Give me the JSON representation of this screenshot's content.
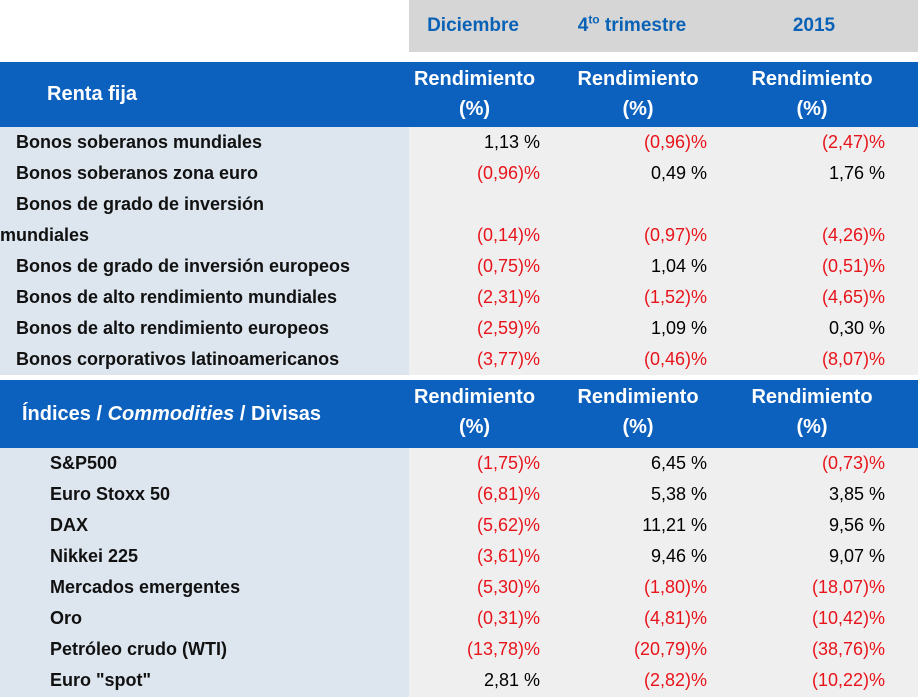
{
  "header": {
    "periods": [
      "Diciembre",
      "4",
      "to",
      " trimestre",
      "2015"
    ]
  },
  "colors": {
    "accent_blue": "#0c61bf",
    "negative_red": "#e8141b"
  },
  "renta_fija": {
    "title": "Renta fija",
    "col_header_line1": "Rendimiento",
    "col_header_line2": "(%)",
    "rows": [
      {
        "label": "Bonos soberanos mundiales",
        "v1": "1,13 %",
        "v2": "(0,96)%",
        "v3": "(2,47)%"
      },
      {
        "label": "Bonos soberanos zona euro",
        "v1": "(0,96)%",
        "v2": "0,49 %",
        "v3": "1,76 %"
      },
      {
        "label": "Bonos de grado de inversión",
        "label2": "mundiales",
        "v1": "(0,14)%",
        "v2": "(0,97)%",
        "v3": "(4,26)%"
      },
      {
        "label": "Bonos de grado de inversión europeos",
        "v1": "(0,75)%",
        "v2": "1,04 %",
        "v3": "(0,51)%"
      },
      {
        "label": "Bonos de alto rendimiento mundiales",
        "v1": "(2,31)%",
        "v2": "(1,52)%",
        "v3": "(4,65)%"
      },
      {
        "label": "Bonos de alto rendimiento europeos",
        "v1": "(2,59)%",
        "v2": "1,09 %",
        "v3": "0,30 %"
      },
      {
        "label": "Bonos corporativos latinoamericanos",
        "v1": "(3,77)%",
        "v2": "(0,46)%",
        "v3": "(8,07)%"
      }
    ]
  },
  "indices": {
    "title_part1": "Índices / ",
    "title_part2": "Commodities",
    "title_part3": " / Divisas",
    "col_header_line1": "Rendimiento",
    "col_header_line2": "(%)",
    "rows": [
      {
        "label": "S&P500",
        "v1": "(1,75)%",
        "v2": "6,45 %",
        "v3": "(0,73)%"
      },
      {
        "label": "Euro Stoxx 50",
        "v1": "(6,81)%",
        "v2": "5,38 %",
        "v3": "3,85 %"
      },
      {
        "label": "DAX",
        "v1": "(5,62)%",
        "v2": "11,21 %",
        "v3": "9,56 %"
      },
      {
        "label": "Nikkei 225",
        "v1": "(3,61)%",
        "v2": "9,46 %",
        "v3": "9,07 %"
      },
      {
        "label": "Mercados emergentes",
        "v1": "(5,30)%",
        "v2": "(1,80)%",
        "v3": "(18,07)%"
      },
      {
        "label": "Oro",
        "v1": "(0,31)%",
        "v2": "(4,81)%",
        "v3": "(10,42)%"
      },
      {
        "label": "Petróleo crudo (WTI)",
        "v1": "(13,78)%",
        "v2": "(20,79)%",
        "v3": "(38,76)%"
      },
      {
        "label": "Euro \"spot\"",
        "v1": "2,81 %",
        "v2": "(2,82)%",
        "v3": "(10,22)%"
      }
    ]
  }
}
